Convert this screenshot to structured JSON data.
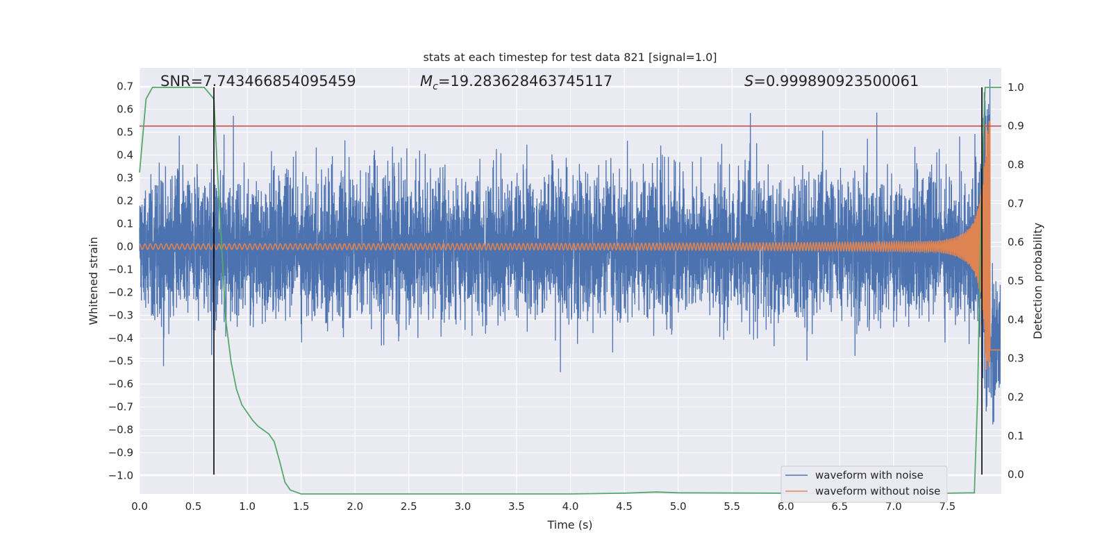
{
  "chart_data": {
    "type": "line",
    "title": "stats at each timestep for test data 821 [signal=1.0]",
    "xlabel": "Time (s)",
    "ylabel": "Whitened strain",
    "ylabel_right": "Detection probability",
    "xlim": [
      0.0,
      8.0
    ],
    "ylim": [
      -1.08,
      0.78
    ],
    "ylim_right": [
      -0.05,
      1.05
    ],
    "x_ticks": [
      "0.0",
      "0.5",
      "1.0",
      "1.5",
      "2.0",
      "2.5",
      "3.0",
      "3.5",
      "4.0",
      "4.5",
      "5.0",
      "5.5",
      "6.0",
      "6.5",
      "7.0",
      "7.5"
    ],
    "x_tick_values": [
      0.0,
      0.5,
      1.0,
      1.5,
      2.0,
      2.5,
      3.0,
      3.5,
      4.0,
      4.5,
      5.0,
      5.5,
      6.0,
      6.5,
      7.0,
      7.5
    ],
    "y_ticks": [
      "0.7",
      "0.6",
      "0.5",
      "0.4",
      "0.3",
      "0.2",
      "0.1",
      "0.0",
      "−0.1",
      "−0.2",
      "−0.3",
      "−0.4",
      "−0.5",
      "−0.6",
      "−0.7",
      "−0.8",
      "−0.9",
      "−1.0"
    ],
    "y_tick_values": [
      0.7,
      0.6,
      0.5,
      0.4,
      0.3,
      0.2,
      0.1,
      0.0,
      -0.1,
      -0.2,
      -0.3,
      -0.4,
      -0.5,
      -0.6,
      -0.7,
      -0.8,
      -0.9,
      -1.0
    ],
    "y2_ticks": [
      "1.0",
      "0.9",
      "0.8",
      "0.7",
      "0.6",
      "0.5",
      "0.4",
      "0.3",
      "0.2",
      "0.1",
      "0.0"
    ],
    "y2_tick_values": [
      1.0,
      0.9,
      0.8,
      0.7,
      0.6,
      0.5,
      0.4,
      0.3,
      0.2,
      0.1,
      0.0
    ],
    "annotations": {
      "snr": "SNR=7.743466854095459",
      "mc_symbol": "M",
      "mc_sub": "c",
      "mc_value": "=19.283628463745117",
      "s_symbol": "S",
      "s_value": "=0.999890923500061"
    },
    "threshold_right": 0.9,
    "vertical_lines": [
      0.69,
      7.82
    ],
    "series": [
      {
        "name": "waveform with noise",
        "color": "#4c72b0",
        "kind": "noise",
        "approx_range": [
          -0.55,
          0.64
        ]
      },
      {
        "name": "waveform without noise",
        "color": "#dd8452",
        "kind": "chirp",
        "merger_time": 7.9
      },
      {
        "name": "detection probability",
        "color": "#55a868",
        "axis": "right",
        "x": [
          0.0,
          0.06,
          0.12,
          0.2,
          0.3,
          0.4,
          0.5,
          0.6,
          0.69,
          0.72,
          0.76,
          0.8,
          0.85,
          0.9,
          0.95,
          1.0,
          1.05,
          1.1,
          1.15,
          1.2,
          1.25,
          1.3,
          1.35,
          1.4,
          1.45,
          1.5,
          2.0,
          3.0,
          4.0,
          4.5,
          4.8,
          5.0,
          6.0,
          7.0,
          7.5,
          7.75,
          7.78,
          7.8,
          7.83,
          7.85,
          7.87,
          7.89,
          8.0
        ],
        "y": [
          0.78,
          0.97,
          1.0,
          1.0,
          1.0,
          1.0,
          1.0,
          1.0,
          0.97,
          0.8,
          0.6,
          0.4,
          0.29,
          0.22,
          0.18,
          0.16,
          0.14,
          0.125,
          0.115,
          0.105,
          0.085,
          0.035,
          -0.02,
          -0.04,
          -0.045,
          -0.05,
          -0.05,
          -0.05,
          -0.05,
          -0.048,
          -0.045,
          -0.047,
          -0.048,
          -0.048,
          -0.048,
          -0.047,
          0.2,
          0.5,
          0.85,
          1.0,
          1.0,
          1.0,
          1.0
        ]
      }
    ],
    "legend_position": "lower-right"
  },
  "legend": {
    "item_0": "waveform with noise",
    "item_1": "waveform without noise"
  }
}
